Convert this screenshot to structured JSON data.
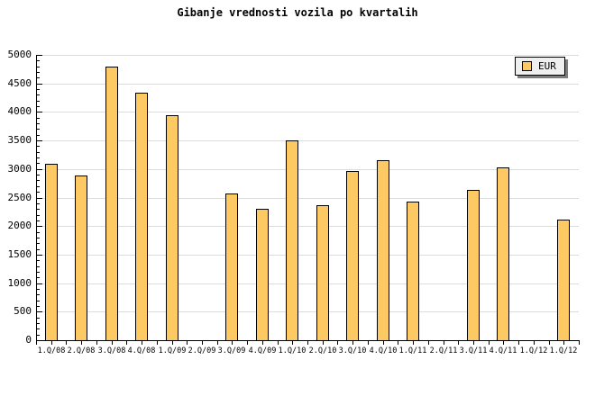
{
  "title": "Gibanje vrednosti vozila po kvartalih",
  "legend": {
    "label": "EUR"
  },
  "colors": {
    "bar_fill": "#FDC963",
    "bar_border": "#000000",
    "grid": "#DDDDDD",
    "axis": "#000000",
    "legend_bg": "#EFEFEF",
    "legend_shadow": "#7D7D7D",
    "background": "#FFFFFF"
  },
  "chart_data": {
    "type": "bar",
    "title": "Gibanje vrednosti vozila po kvartalih",
    "categories": [
      "1.Q/08",
      "2.Q/08",
      "3.Q/08",
      "4.Q/08",
      "1.Q/09",
      "2.Q/09",
      "3.Q/09",
      "4.Q/09",
      "1.Q/10",
      "2.Q/10",
      "3.Q/10",
      "4.Q/10",
      "1.Q/11",
      "2.Q/11",
      "3.Q/11",
      "4.Q/11",
      "1.Q/12",
      "1.Q/12"
    ],
    "series": [
      {
        "name": "EUR",
        "values": [
          3090,
          2880,
          4800,
          4340,
          3940,
          null,
          2570,
          2300,
          3500,
          2360,
          2970,
          3150,
          2430,
          null,
          2640,
          3030,
          null,
          2110
        ]
      }
    ],
    "xlabel": "",
    "ylabel": "",
    "ylim": [
      0,
      5000
    ],
    "ytick_major": 500,
    "ytick_minor": 100,
    "yticklabels": [
      "0",
      "500",
      "1000",
      "1500",
      "2000",
      "2500",
      "3000",
      "3500",
      "4000",
      "4500",
      "5000"
    ],
    "grid": "horizontal-major",
    "legend_position": "top-right"
  }
}
